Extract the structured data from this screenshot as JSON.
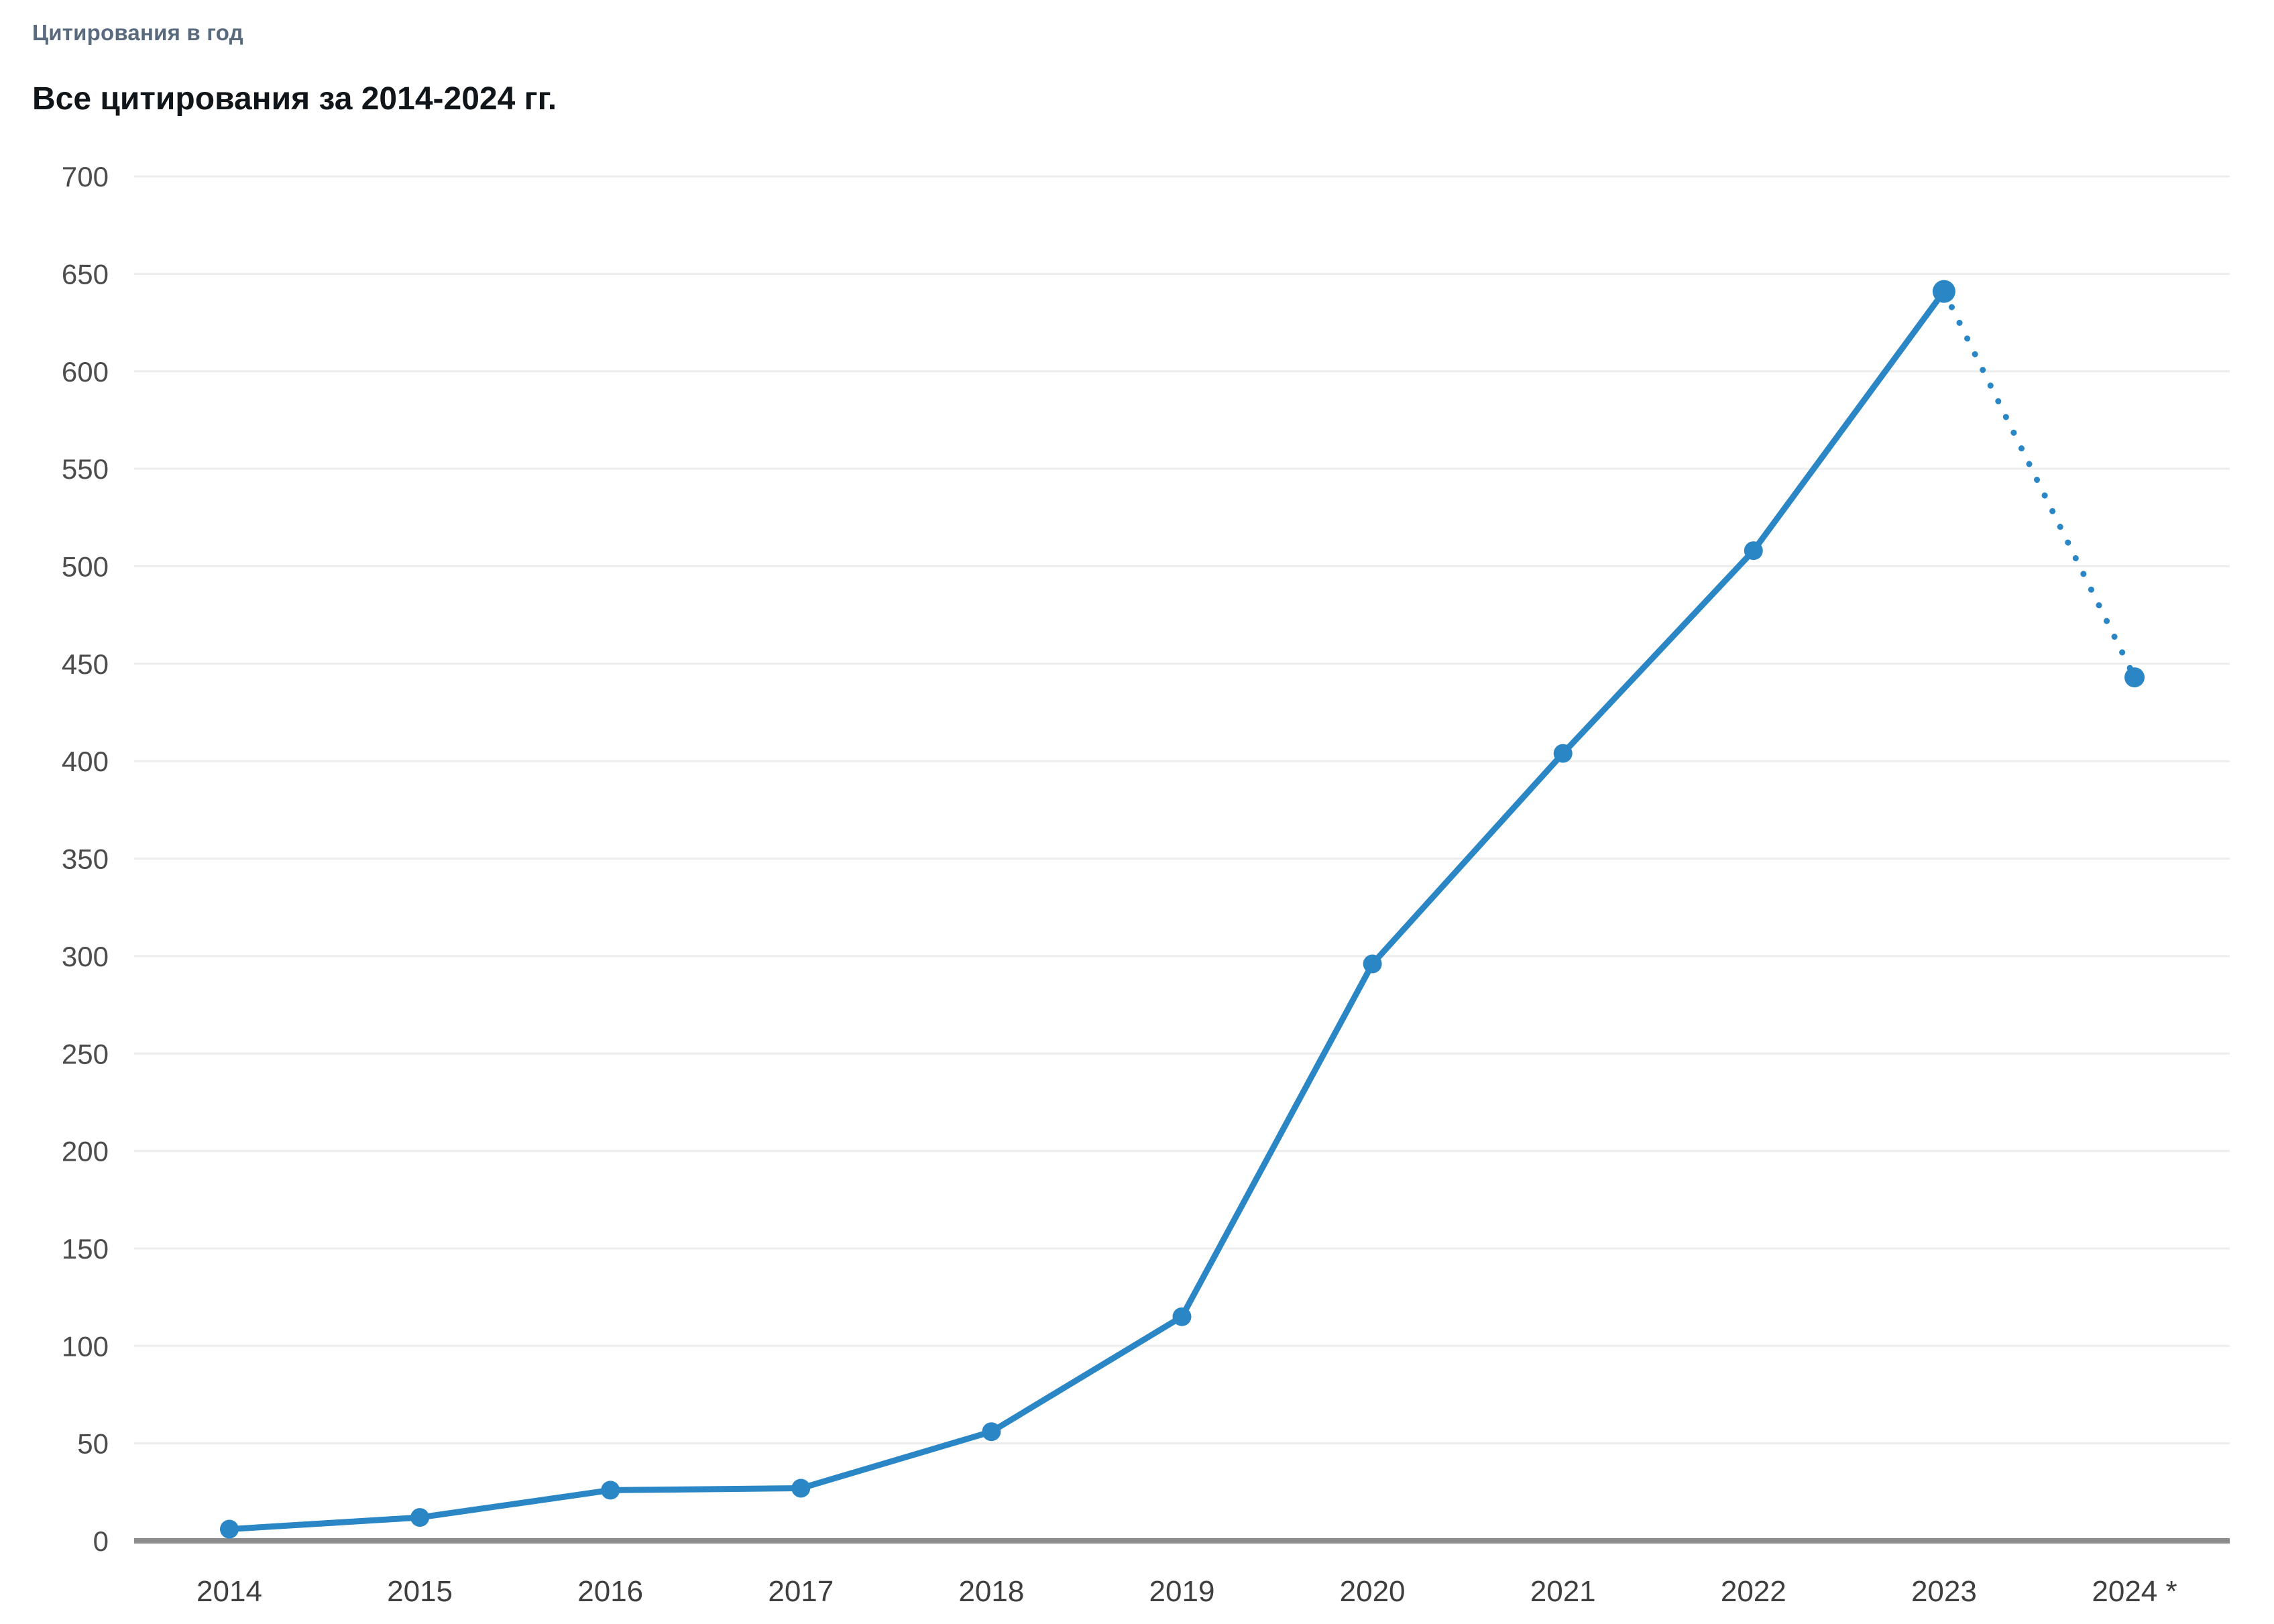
{
  "header": {
    "kicker": "Цитирования в год",
    "title": "Все цитирования за 2014-2024 гг."
  },
  "chart_data": {
    "type": "line",
    "title": "Все цитирования за 2014-2024 гг.",
    "subtitle": "Цитирования в год",
    "categories": [
      "2014",
      "2015",
      "2016",
      "2017",
      "2018",
      "2019",
      "2020",
      "2021",
      "2022",
      "2023",
      "2024 *"
    ],
    "series": [
      {
        "name": "Все цитирования",
        "values": [
          6,
          12,
          26,
          27,
          56,
          115,
          296,
          404,
          508,
          641,
          443
        ]
      }
    ],
    "projection": {
      "from_category": "2023",
      "to_category": "2024 *",
      "style": "dotted",
      "note_marker": "*"
    },
    "xlabel": "",
    "ylabel": "",
    "y_ticks": [
      0,
      50,
      100,
      150,
      200,
      250,
      300,
      350,
      400,
      450,
      500,
      550,
      600,
      650,
      700
    ],
    "ylim": [
      0,
      700
    ],
    "grid": "horizontal",
    "legend": "none",
    "line_color": "#2a86c4",
    "grid_color": "#ededed",
    "axis_color": "#8c8c8c",
    "tick_label_color": "#4c4c4c"
  }
}
